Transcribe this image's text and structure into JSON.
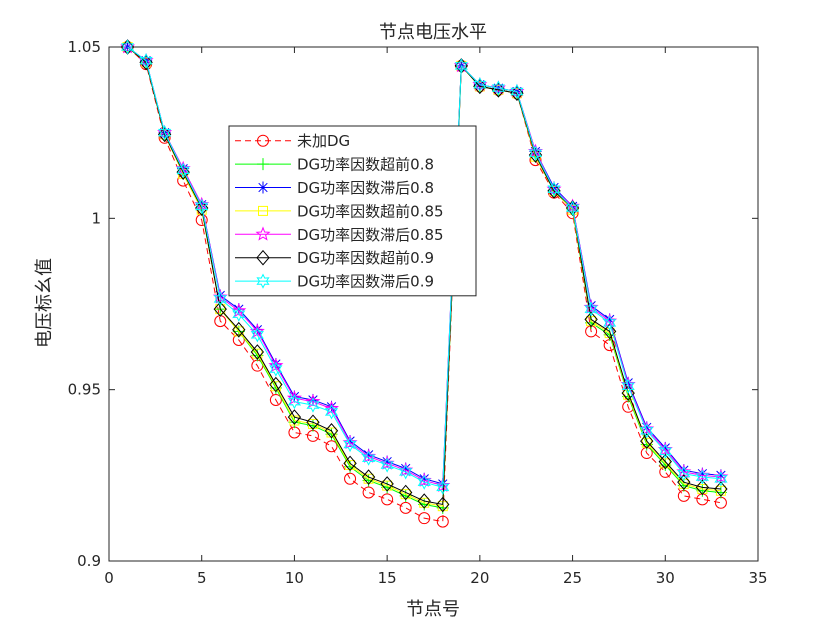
{
  "chart_data": {
    "type": "line",
    "title": "节点电压水平",
    "xlabel": "节点号",
    "ylabel": "电压标幺值",
    "xlim": [
      0,
      35
    ],
    "ylim": [
      0.9,
      1.05
    ],
    "xticks": [
      "0",
      "5",
      "10",
      "15",
      "20",
      "25",
      "30",
      "35"
    ],
    "yticks": [
      "0.9",
      "0.95",
      "1",
      "1.05"
    ],
    "grid": false,
    "legend_position": "upper-left-inside",
    "x": [
      1,
      2,
      3,
      4,
      5,
      6,
      7,
      8,
      9,
      10,
      11,
      12,
      13,
      14,
      15,
      16,
      17,
      18,
      19,
      20,
      21,
      22,
      23,
      24,
      25,
      26,
      27,
      28,
      29,
      30,
      31,
      32,
      33
    ],
    "series": [
      {
        "name": "未加DG",
        "color": "#ff0000",
        "line": "dashed",
        "marker": "circle",
        "values": [
          1.05,
          1.045,
          1.0235,
          1.011,
          0.9995,
          0.97,
          0.9645,
          0.957,
          0.947,
          0.9375,
          0.9365,
          0.9335,
          0.924,
          0.92,
          0.918,
          0.9155,
          0.9125,
          0.9115,
          1.0445,
          1.0385,
          1.0375,
          1.0365,
          1.017,
          1.0075,
          1.0015,
          0.967,
          0.963,
          0.945,
          0.9315,
          0.926,
          0.919,
          0.918,
          0.917
        ]
      },
      {
        "name": "DG功率因数超前0.8",
        "color": "#00ff00",
        "line": "solid",
        "marker": "plus",
        "values": [
          1.05,
          1.0455,
          1.0245,
          1.013,
          1.0025,
          0.9735,
          0.967,
          0.96,
          0.9505,
          0.9405,
          0.9395,
          0.937,
          0.9275,
          0.9235,
          0.9215,
          0.919,
          0.9165,
          0.9155,
          1.0445,
          1.0385,
          1.0375,
          1.0365,
          1.018,
          1.008,
          1.0025,
          0.9695,
          0.966,
          0.948,
          0.934,
          0.928,
          0.922,
          0.9205,
          0.92
        ]
      },
      {
        "name": "DG功率因数滞后0.8",
        "color": "#0000ff",
        "line": "solid",
        "marker": "asterisk",
        "values": [
          1.05,
          1.046,
          1.025,
          1.0145,
          1.004,
          0.9775,
          0.9735,
          0.9675,
          0.9575,
          0.948,
          0.947,
          0.945,
          0.935,
          0.931,
          0.929,
          0.927,
          0.924,
          0.9225,
          1.0445,
          1.039,
          1.038,
          1.037,
          1.0195,
          1.009,
          1.0035,
          0.9745,
          0.9705,
          0.952,
          0.939,
          0.933,
          0.9265,
          0.9255,
          0.925
        ]
      },
      {
        "name": "DG功率因数超前0.85",
        "color": "#ffff00",
        "line": "solid",
        "marker": "square",
        "values": [
          1.05,
          1.0455,
          1.0245,
          1.013,
          1.0025,
          0.9735,
          0.967,
          0.9605,
          0.951,
          0.941,
          0.94,
          0.9375,
          0.928,
          0.924,
          0.922,
          0.9195,
          0.917,
          0.916,
          1.0445,
          1.0385,
          1.0375,
          1.0365,
          1.018,
          1.008,
          1.0025,
          0.97,
          0.9665,
          0.9485,
          0.9345,
          0.9285,
          0.9225,
          0.921,
          0.9205
        ]
      },
      {
        "name": "DG功率因数滞后0.85",
        "color": "#ff00ff",
        "line": "solid",
        "marker": "pentagram",
        "values": [
          1.05,
          1.046,
          1.025,
          1.0145,
          1.004,
          0.977,
          0.973,
          0.967,
          0.957,
          0.9475,
          0.9465,
          0.9445,
          0.9345,
          0.9305,
          0.9285,
          0.9265,
          0.9235,
          0.922,
          1.0445,
          1.039,
          1.038,
          1.037,
          1.0195,
          1.0085,
          1.0035,
          0.974,
          0.97,
          0.9515,
          0.9385,
          0.9325,
          0.926,
          0.925,
          0.9245
        ]
      },
      {
        "name": "DG功率因数超前0.9",
        "color": "#000000",
        "line": "solid",
        "marker": "diamond",
        "values": [
          1.05,
          1.0455,
          1.0245,
          1.0135,
          1.003,
          0.9735,
          0.9675,
          0.961,
          0.9515,
          0.942,
          0.9405,
          0.938,
          0.9285,
          0.9245,
          0.9225,
          0.92,
          0.9175,
          0.9165,
          1.0445,
          1.0385,
          1.0375,
          1.0365,
          1.0185,
          1.008,
          1.003,
          0.9705,
          0.967,
          0.949,
          0.935,
          0.929,
          0.923,
          0.9215,
          0.921
        ]
      },
      {
        "name": "DG功率因数滞后0.9",
        "color": "#00ffff",
        "line": "solid",
        "marker": "hexagram",
        "values": [
          1.05,
          1.046,
          1.025,
          1.014,
          1.0035,
          0.9765,
          0.972,
          0.966,
          0.956,
          0.9465,
          0.9455,
          0.9435,
          0.934,
          0.93,
          0.928,
          0.926,
          0.923,
          0.9215,
          1.0445,
          1.039,
          1.038,
          1.037,
          1.019,
          1.0085,
          1.003,
          0.9735,
          0.9695,
          0.951,
          0.938,
          0.932,
          0.9255,
          0.9245,
          0.924
        ]
      }
    ]
  }
}
